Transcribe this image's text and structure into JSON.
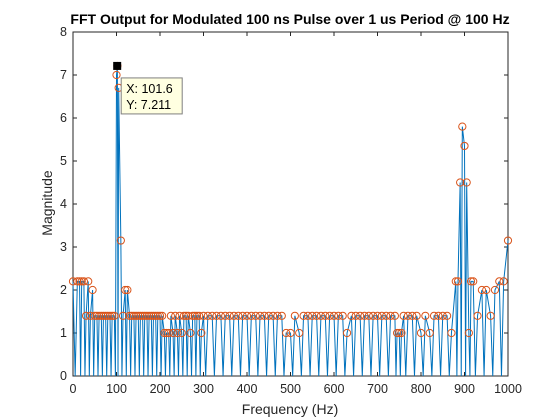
{
  "chart_data": {
    "type": "line",
    "title": "FFT Output for Modulated 100 ns Pulse over 1 us Period @ 100 Hz",
    "xlabel": "Frequency (Hz)",
    "ylabel": "Magnitude",
    "xlim": [
      0,
      1000
    ],
    "ylim": [
      0,
      8
    ],
    "x_ticks": [
      0,
      100,
      200,
      300,
      400,
      500,
      600,
      700,
      800,
      900,
      1000
    ],
    "y_ticks": [
      0,
      1,
      2,
      3,
      4,
      5,
      6,
      7,
      8
    ],
    "grid": false,
    "legend": "none",
    "series": [
      {
        "style": "stem-line",
        "color": "#0072BD",
        "x": [
          0,
          10,
          15,
          20,
          25,
          30,
          35,
          40,
          45,
          50,
          55,
          60,
          65,
          70,
          75,
          80,
          85,
          90,
          95,
          100,
          102,
          105,
          110,
          115,
          120,
          125,
          130,
          135,
          140,
          145,
          150,
          155,
          160,
          165,
          170,
          175,
          180,
          185,
          190,
          195,
          200,
          205,
          210,
          215,
          220,
          225,
          230,
          235,
          240,
          245,
          250,
          255,
          260,
          265,
          270,
          275,
          280,
          285,
          290,
          295,
          300,
          310,
          320,
          330,
          340,
          350,
          360,
          370,
          380,
          390,
          400,
          410,
          420,
          430,
          440,
          450,
          460,
          470,
          480,
          490,
          500,
          510,
          520,
          530,
          540,
          550,
          560,
          570,
          580,
          590,
          600,
          610,
          620,
          630,
          640,
          650,
          660,
          670,
          680,
          690,
          700,
          710,
          720,
          730,
          740,
          745,
          750,
          755,
          760,
          770,
          780,
          790,
          800,
          810,
          820,
          830,
          840,
          850,
          860,
          870,
          880,
          885,
          890,
          895,
          900,
          905,
          910,
          915,
          920,
          930,
          940,
          950,
          960,
          970,
          980,
          990,
          1000
        ],
        "y": [
          2.2,
          2.2,
          2.2,
          2.2,
          2.2,
          1.4,
          2.2,
          1.4,
          2.0,
          1.4,
          1.4,
          1.4,
          1.4,
          1.4,
          1.4,
          1.4,
          1.4,
          1.4,
          1.4,
          7.0,
          7.211,
          6.7,
          3.15,
          1.4,
          2.0,
          2.0,
          1.4,
          1.4,
          1.4,
          1.4,
          1.4,
          1.4,
          1.4,
          1.4,
          1.4,
          1.4,
          1.4,
          1.4,
          1.4,
          1.4,
          1.4,
          1.4,
          1.0,
          1.0,
          1.0,
          1.4,
          1.0,
          1.4,
          1.0,
          1.4,
          1.0,
          1.4,
          1.4,
          1.4,
          1.0,
          1.4,
          1.4,
          1.4,
          1.4,
          1.0,
          1.4,
          1.4,
          1.4,
          1.4,
          1.4,
          1.4,
          1.4,
          1.4,
          1.4,
          1.4,
          1.4,
          1.4,
          1.4,
          1.4,
          1.4,
          1.4,
          1.4,
          1.4,
          1.4,
          1.0,
          1.0,
          1.4,
          1.0,
          1.4,
          1.4,
          1.4,
          1.4,
          1.4,
          1.4,
          1.4,
          1.4,
          1.4,
          1.4,
          1.0,
          1.4,
          1.4,
          1.4,
          1.4,
          1.4,
          1.4,
          1.4,
          1.4,
          1.4,
          1.4,
          1.4,
          1.0,
          1.0,
          1.0,
          1.4,
          1.4,
          1.4,
          1.4,
          1.0,
          1.4,
          1.0,
          1.4,
          1.4,
          1.4,
          1.4,
          1.0,
          2.2,
          2.2,
          4.5,
          5.8,
          5.35,
          4.5,
          1.0,
          2.2,
          2.2,
          1.4,
          2.0,
          2.0,
          1.4,
          2.0,
          2.2,
          2.2,
          3.15
        ]
      },
      {
        "style": "markers",
        "marker": "circle",
        "color": "#D95319",
        "x": [
          0,
          10,
          15,
          20,
          25,
          30,
          35,
          40,
          45,
          50,
          55,
          60,
          65,
          70,
          75,
          80,
          85,
          90,
          95,
          100,
          102,
          105,
          110,
          115,
          120,
          125,
          130,
          135,
          140,
          145,
          150,
          155,
          160,
          165,
          170,
          175,
          180,
          185,
          190,
          195,
          200,
          205,
          210,
          215,
          220,
          225,
          230,
          235,
          240,
          245,
          250,
          255,
          260,
          265,
          270,
          275,
          280,
          285,
          290,
          295,
          300,
          310,
          320,
          330,
          340,
          350,
          360,
          370,
          380,
          390,
          400,
          410,
          420,
          430,
          440,
          450,
          460,
          470,
          480,
          490,
          500,
          510,
          520,
          530,
          540,
          550,
          560,
          570,
          580,
          590,
          600,
          610,
          620,
          630,
          640,
          650,
          660,
          670,
          680,
          690,
          700,
          710,
          720,
          730,
          740,
          745,
          750,
          755,
          760,
          770,
          780,
          790,
          800,
          810,
          820,
          830,
          840,
          850,
          860,
          870,
          880,
          885,
          890,
          895,
          900,
          905,
          910,
          915,
          920,
          930,
          940,
          950,
          960,
          970,
          980,
          990,
          1000
        ],
        "y": [
          2.2,
          2.2,
          2.2,
          2.2,
          2.2,
          1.4,
          2.2,
          1.4,
          2.0,
          1.4,
          1.4,
          1.4,
          1.4,
          1.4,
          1.4,
          1.4,
          1.4,
          1.4,
          1.4,
          7.0,
          7.211,
          6.7,
          3.15,
          1.4,
          2.0,
          2.0,
          1.4,
          1.4,
          1.4,
          1.4,
          1.4,
          1.4,
          1.4,
          1.4,
          1.4,
          1.4,
          1.4,
          1.4,
          1.4,
          1.4,
          1.4,
          1.4,
          1.0,
          1.0,
          1.0,
          1.4,
          1.0,
          1.4,
          1.0,
          1.4,
          1.0,
          1.4,
          1.4,
          1.4,
          1.0,
          1.4,
          1.4,
          1.4,
          1.4,
          1.0,
          1.4,
          1.4,
          1.4,
          1.4,
          1.4,
          1.4,
          1.4,
          1.4,
          1.4,
          1.4,
          1.4,
          1.4,
          1.4,
          1.4,
          1.4,
          1.4,
          1.4,
          1.4,
          1.4,
          1.0,
          1.0,
          1.4,
          1.0,
          1.4,
          1.4,
          1.4,
          1.4,
          1.4,
          1.4,
          1.4,
          1.4,
          1.4,
          1.4,
          1.0,
          1.4,
          1.4,
          1.4,
          1.4,
          1.4,
          1.4,
          1.4,
          1.4,
          1.4,
          1.4,
          1.4,
          1.0,
          1.0,
          1.0,
          1.4,
          1.4,
          1.4,
          1.4,
          1.0,
          1.4,
          1.0,
          1.4,
          1.4,
          1.4,
          1.4,
          1.0,
          2.2,
          2.2,
          4.5,
          5.8,
          5.35,
          4.5,
          1.0,
          2.2,
          2.2,
          1.4,
          2.0,
          2.0,
          1.4,
          2.0,
          2.2,
          2.2,
          3.15
        ]
      }
    ],
    "datatip": {
      "x": 101.6,
      "y": 7.211,
      "x_text": "X: 101.6",
      "y_text": "Y: 7.211",
      "background": "#FFFFE1"
    },
    "colors": {
      "axes": "#262626",
      "line": "#0072BD",
      "marker": "#D95319",
      "background": "#FFFFFF"
    }
  }
}
